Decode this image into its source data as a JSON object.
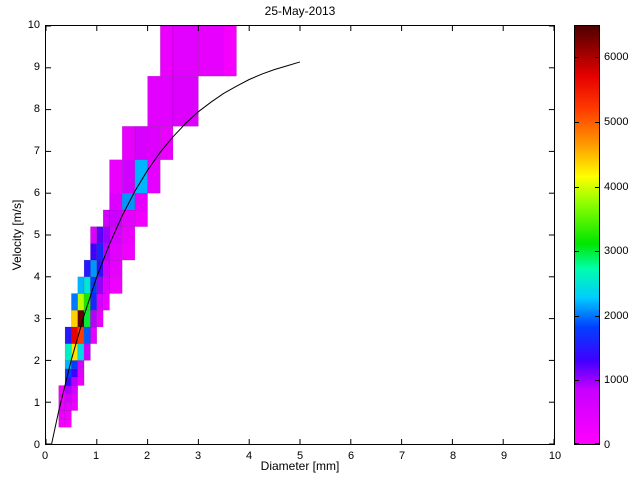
{
  "figure": {
    "background": "#ffffff",
    "curve_color": "#000000"
  },
  "chart_data": {
    "type": "heatmap",
    "title": "25-May-2013",
    "xlabel": "Diameter [mm]",
    "ylabel": "Velocity [m/s]",
    "xlim": [
      0,
      10
    ],
    "ylim": [
      0,
      10
    ],
    "xticks": [
      0,
      1,
      2,
      3,
      4,
      5,
      6,
      7,
      8,
      9,
      10
    ],
    "yticks": [
      0,
      1,
      2,
      3,
      4,
      5,
      6,
      7,
      8,
      9,
      10
    ],
    "grid": false,
    "legend": "none",
    "colorbar": {
      "position": "right",
      "min": 0,
      "max": 6500,
      "ticks": [
        0,
        1000,
        2000,
        3000,
        4000,
        5000,
        6000
      ]
    },
    "colormap": [
      {
        "t": 0.0,
        "color": "#FF00FF"
      },
      {
        "t": 0.13,
        "color": "#C800FF"
      },
      {
        "t": 0.2,
        "color": "#4000FF"
      },
      {
        "t": 0.28,
        "color": "#0040FF"
      },
      {
        "t": 0.35,
        "color": "#00CCFF"
      },
      {
        "t": 0.42,
        "color": "#00FFAA"
      },
      {
        "t": 0.48,
        "color": "#00E600"
      },
      {
        "t": 0.58,
        "color": "#96FF00"
      },
      {
        "t": 0.64,
        "color": "#FFFF00"
      },
      {
        "t": 0.72,
        "color": "#FF9600"
      },
      {
        "t": 0.8,
        "color": "#FF3C00"
      },
      {
        "t": 0.88,
        "color": "#E60000"
      },
      {
        "t": 1.0,
        "color": "#500000"
      }
    ],
    "cell_format": [
      "x0",
      "x1",
      "y0",
      "y1",
      "count"
    ],
    "cells": [
      [
        0.25,
        0.375,
        0.4,
        0.6,
        150
      ],
      [
        0.375,
        0.5,
        0.4,
        0.6,
        100
      ],
      [
        0.25,
        0.375,
        0.6,
        0.8,
        300
      ],
      [
        0.375,
        0.5,
        0.6,
        0.8,
        250
      ],
      [
        0.25,
        0.375,
        0.8,
        1.0,
        350
      ],
      [
        0.375,
        0.5,
        0.8,
        1.0,
        450
      ],
      [
        0.5,
        0.625,
        0.8,
        1.0,
        200
      ],
      [
        0.25,
        0.375,
        1.0,
        1.2,
        250
      ],
      [
        0.375,
        0.5,
        1.0,
        1.2,
        700
      ],
      [
        0.5,
        0.625,
        1.0,
        1.2,
        400
      ],
      [
        0.25,
        0.375,
        1.2,
        1.4,
        150
      ],
      [
        0.375,
        0.5,
        1.2,
        1.4,
        950
      ],
      [
        0.5,
        0.625,
        1.2,
        1.4,
        600
      ],
      [
        0.375,
        0.5,
        1.4,
        1.6,
        1400
      ],
      [
        0.5,
        0.625,
        1.4,
        1.6,
        900
      ],
      [
        0.625,
        0.75,
        1.4,
        1.6,
        300
      ],
      [
        0.375,
        0.5,
        1.6,
        1.8,
        1800
      ],
      [
        0.5,
        0.625,
        1.6,
        1.8,
        1300
      ],
      [
        0.625,
        0.75,
        1.6,
        1.8,
        450
      ],
      [
        0.375,
        0.5,
        1.8,
        2.0,
        2200
      ],
      [
        0.5,
        0.625,
        1.8,
        2.0,
        1800
      ],
      [
        0.625,
        0.75,
        1.8,
        2.0,
        650
      ],
      [
        0.375,
        0.5,
        2.0,
        2.4,
        2600
      ],
      [
        0.5,
        0.625,
        2.0,
        2.4,
        4300
      ],
      [
        0.625,
        0.75,
        2.0,
        2.4,
        2400
      ],
      [
        0.75,
        0.875,
        2.0,
        2.4,
        800
      ],
      [
        0.375,
        0.5,
        2.4,
        2.8,
        1500
      ],
      [
        0.5,
        0.625,
        2.4,
        2.8,
        5700
      ],
      [
        0.625,
        0.75,
        2.4,
        2.8,
        5200
      ],
      [
        0.75,
        0.875,
        2.4,
        2.8,
        1900
      ],
      [
        0.875,
        1.0,
        2.4,
        2.8,
        400
      ],
      [
        0.5,
        0.625,
        2.8,
        3.2,
        4400
      ],
      [
        0.625,
        0.75,
        2.8,
        3.2,
        6400
      ],
      [
        0.75,
        0.875,
        2.8,
        3.2,
        3000
      ],
      [
        0.875,
        1.0,
        2.8,
        3.2,
        900
      ],
      [
        1.0,
        1.125,
        2.8,
        3.2,
        300
      ],
      [
        0.5,
        0.625,
        3.2,
        3.6,
        2000
      ],
      [
        0.625,
        0.75,
        3.2,
        3.6,
        3900
      ],
      [
        0.75,
        0.875,
        3.2,
        3.6,
        3200
      ],
      [
        0.875,
        1.0,
        3.2,
        3.6,
        1600
      ],
      [
        1.0,
        1.125,
        3.2,
        3.6,
        600
      ],
      [
        1.125,
        1.25,
        3.2,
        3.6,
        300
      ],
      [
        0.625,
        0.75,
        3.6,
        4.0,
        2200
      ],
      [
        0.75,
        0.875,
        3.6,
        4.0,
        2500
      ],
      [
        0.875,
        1.0,
        3.6,
        4.0,
        1800
      ],
      [
        1.0,
        1.125,
        3.6,
        4.0,
        1000
      ],
      [
        1.125,
        1.25,
        3.6,
        4.0,
        500
      ],
      [
        1.25,
        1.5,
        3.6,
        4.0,
        250
      ],
      [
        0.75,
        0.875,
        4.0,
        4.4,
        1500
      ],
      [
        0.875,
        1.0,
        4.0,
        4.4,
        2100
      ],
      [
        1.0,
        1.125,
        4.0,
        4.4,
        1400
      ],
      [
        1.125,
        1.25,
        4.0,
        4.4,
        700
      ],
      [
        1.25,
        1.5,
        4.0,
        4.4,
        350
      ],
      [
        0.875,
        1.0,
        4.4,
        4.8,
        1300
      ],
      [
        1.0,
        1.125,
        4.4,
        4.8,
        1600
      ],
      [
        1.125,
        1.25,
        4.4,
        4.8,
        900
      ],
      [
        1.25,
        1.5,
        4.4,
        4.8,
        450
      ],
      [
        1.5,
        1.75,
        4.4,
        4.8,
        200
      ],
      [
        0.875,
        1.0,
        4.8,
        5.2,
        500
      ],
      [
        1.0,
        1.125,
        4.8,
        5.2,
        1200
      ],
      [
        1.125,
        1.25,
        4.8,
        5.2,
        1000
      ],
      [
        1.25,
        1.5,
        4.8,
        5.2,
        600
      ],
      [
        1.5,
        1.75,
        4.8,
        5.2,
        300
      ],
      [
        1.125,
        1.25,
        5.2,
        5.6,
        700
      ],
      [
        1.25,
        1.5,
        5.2,
        5.6,
        800
      ],
      [
        1.5,
        1.75,
        5.2,
        5.6,
        400
      ],
      [
        1.75,
        2.0,
        5.2,
        5.6,
        200
      ],
      [
        1.25,
        1.5,
        5.6,
        6.0,
        500
      ],
      [
        1.5,
        1.75,
        5.6,
        6.0,
        2100
      ],
      [
        1.75,
        2.0,
        5.6,
        6.0,
        350
      ],
      [
        1.25,
        1.5,
        6.0,
        6.8,
        300
      ],
      [
        1.5,
        1.75,
        6.0,
        6.8,
        700
      ],
      [
        1.75,
        2.0,
        6.0,
        6.8,
        2200
      ],
      [
        2.0,
        2.25,
        6.0,
        6.8,
        400
      ],
      [
        1.5,
        1.75,
        6.8,
        7.6,
        350
      ],
      [
        1.75,
        2.0,
        6.8,
        7.6,
        600
      ],
      [
        2.0,
        2.25,
        6.8,
        7.6,
        500
      ],
      [
        2.25,
        2.5,
        6.8,
        7.6,
        300
      ],
      [
        2.0,
        2.5,
        7.6,
        8.8,
        450
      ],
      [
        2.5,
        3.0,
        7.6,
        8.8,
        500
      ],
      [
        2.25,
        2.5,
        8.8,
        10,
        300
      ],
      [
        2.5,
        3.0,
        8.8,
        10,
        450
      ],
      [
        3.0,
        3.5,
        8.8,
        10,
        350
      ],
      [
        3.5,
        3.75,
        8.8,
        10,
        150
      ]
    ],
    "curve": {
      "name": "terminal-velocity-fit",
      "color": "#000000",
      "points": [
        [
          0.11,
          0
        ],
        [
          0.25,
          0.79
        ],
        [
          0.5,
          2.02
        ],
        [
          0.75,
          3.08
        ],
        [
          1.0,
          4.0
        ],
        [
          1.25,
          4.78
        ],
        [
          1.5,
          5.46
        ],
        [
          1.75,
          6.05
        ],
        [
          2.0,
          6.55
        ],
        [
          2.25,
          6.98
        ],
        [
          2.5,
          7.35
        ],
        [
          2.75,
          7.67
        ],
        [
          3.0,
          7.95
        ],
        [
          3.25,
          8.18
        ],
        [
          3.5,
          8.39
        ],
        [
          3.75,
          8.56
        ],
        [
          4.0,
          8.72
        ],
        [
          4.25,
          8.85
        ],
        [
          4.5,
          8.96
        ],
        [
          4.75,
          9.05
        ],
        [
          5.0,
          9.14
        ]
      ]
    }
  }
}
